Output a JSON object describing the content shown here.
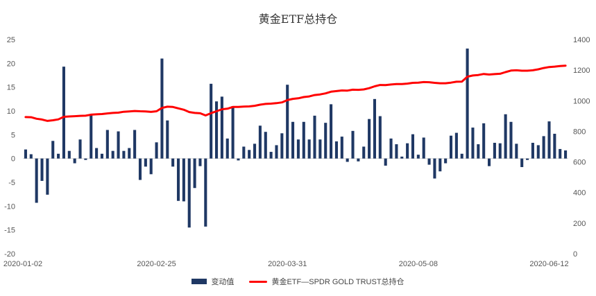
{
  "chart_data": {
    "type": "bar+line",
    "title": "黄金ETF总持仓",
    "x_tick_labels": [
      "2020-01-02",
      "2020-02-25",
      "2020-03-31",
      "2020-05-08",
      "2020-06-12"
    ],
    "y_left": {
      "min": -20,
      "max": 25,
      "ticks": [
        -20,
        -15,
        -10,
        -5,
        0,
        5,
        10,
        15,
        20,
        25
      ]
    },
    "y_right": {
      "min": 0,
      "max": 1400,
      "ticks": [
        0,
        200,
        400,
        600,
        800,
        1000,
        1200,
        1400
      ]
    },
    "grid": false,
    "legend_position": "bottom",
    "colors": {
      "bar": "#1f3864",
      "line": "#ff0000"
    },
    "series": [
      {
        "name": "变动值",
        "type": "bar",
        "axis": "left",
        "values": [
          1.9,
          0.9,
          -9.3,
          -4.7,
          -7.6,
          3.7,
          1.0,
          19.3,
          1.6,
          -1.0,
          4.0,
          -0.3,
          9.2,
          2.2,
          1.0,
          6.0,
          1.6,
          5.7,
          1.6,
          2.2,
          6.0,
          -4.5,
          -1.7,
          -3.3,
          3.4,
          21.0,
          8.0,
          -1.7,
          -8.9,
          -9.0,
          -14.5,
          -6.2,
          -1.6,
          -14.3,
          15.7,
          12.0,
          13.0,
          4.2,
          11.0,
          -0.4,
          2.5,
          1.8,
          3.1,
          6.9,
          5.6,
          1.4,
          2.8,
          5.3,
          15.5,
          7.7,
          4.0,
          7.7,
          4.0,
          9.0,
          4.0,
          7.5,
          11.4,
          3.6,
          4.6,
          -0.7,
          5.8,
          -0.6,
          2.5,
          8.3,
          12.5,
          8.9,
          -1.5,
          4.2,
          3.0,
          0.4,
          3.2,
          5.1,
          0.8,
          4.4,
          -1.3,
          -4.2,
          -2.7,
          -1.0,
          4.8,
          5.4,
          1.0,
          23.1,
          6.5,
          3.0,
          7.4,
          -1.6,
          3.3,
          3.2,
          9.3,
          7.7,
          3.1,
          -1.8,
          -0.3,
          3.3,
          2.8,
          4.7,
          7.8,
          5.2,
          2.0,
          1.7
        ]
      },
      {
        "name": "黄金ETF—SPDR GOLD TRUST总持仓",
        "type": "line",
        "axis": "right",
        "values": [
          893,
          892,
          882,
          877,
          868,
          872,
          878,
          895,
          897,
          899,
          901,
          902,
          909,
          911,
          913,
          917,
          920,
          922,
          928,
          930,
          933,
          931,
          930,
          927,
          931,
          953,
          961,
          959,
          950,
          941,
          926,
          920,
          918,
          904,
          919,
          931,
          944,
          948,
          959,
          959,
          962,
          963,
          967,
          974,
          979,
          981,
          984,
          989,
          1004,
          1012,
          1016,
          1024,
          1028,
          1037,
          1041,
          1048,
          1059,
          1063,
          1067,
          1066,
          1072,
          1071,
          1074,
          1082,
          1094,
          1103,
          1102,
          1106,
          1109,
          1109,
          1112,
          1117,
          1118,
          1122,
          1121,
          1117,
          1114,
          1114,
          1118,
          1124,
          1125,
          1157,
          1165,
          1168,
          1175,
          1171,
          1174,
          1176,
          1187,
          1197,
          1199,
          1196,
          1196,
          1199,
          1205,
          1214,
          1220,
          1223,
          1227,
          1229
        ]
      }
    ]
  }
}
